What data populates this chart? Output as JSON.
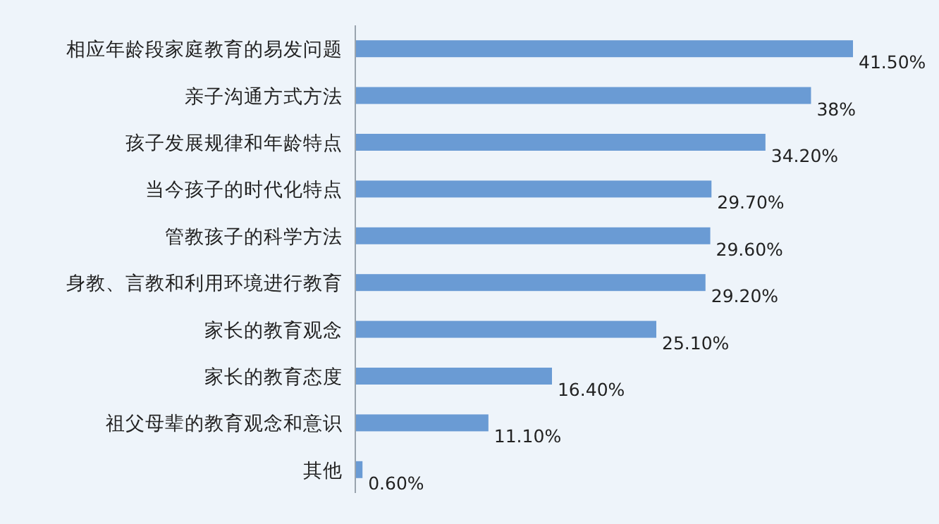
{
  "chart_data": {
    "type": "bar",
    "orientation": "horizontal",
    "color": "#6a9bd4",
    "categories": [
      "相应年龄段家庭教育的易发问题",
      "亲子沟通方式方法",
      "孩子发展规律和年龄特点",
      "当今孩子的时代化特点",
      "管教孩子的科学方法",
      "身教、言教和利用环境进行教育",
      "家长的教育观念",
      "家长的教育态度",
      "祖父母辈的教育观念和意识",
      "其他"
    ],
    "values": [
      41.5,
      38,
      34.2,
      29.7,
      29.6,
      29.2,
      25.1,
      16.4,
      11.1,
      0.6
    ],
    "value_labels": [
      "41.50%",
      "38%",
      "34.20%",
      "29.70%",
      "29.60%",
      "29.20%",
      "25.10%",
      "16.40%",
      "11.10%",
      "0.60%"
    ]
  }
}
